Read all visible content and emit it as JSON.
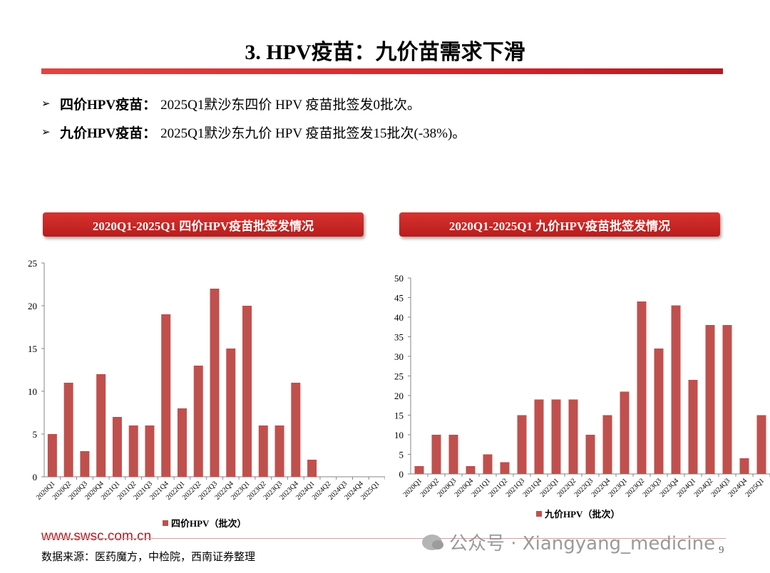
{
  "title": "3. HPV疫苗：九价苗需求下滑",
  "bullets": [
    {
      "arrow": "➢",
      "label": "四价HPV疫苗：",
      "text": "2025Q1默沙东四价 HPV 疫苗批签发0批次。"
    },
    {
      "arrow": "➢",
      "label": "九价HPV疫苗：",
      "text": " 2025Q1默沙东九价 HPV 疫苗批签发15批次(-38%)。"
    }
  ],
  "colors": {
    "bar": "#c0504d",
    "accent": "#d81f26"
  },
  "chart_data": [
    {
      "type": "bar",
      "title": "2020Q1-2025Q1 四价HPV疫苗批签发情况",
      "categories": [
        "2020Q1",
        "2020Q2",
        "2020Q3",
        "2020Q4",
        "2021Q1",
        "2021Q2",
        "2021Q3",
        "2021Q4",
        "2022Q1",
        "2022Q2",
        "2022Q3",
        "2022Q4",
        "2023Q1",
        "2023Q2",
        "2023Q3",
        "2023Q4",
        "2024Q1",
        "2024Q2",
        "2024Q3",
        "2024Q4",
        "2025Q1"
      ],
      "series": [
        {
          "name": "四价HPV（批次）",
          "values": [
            5,
            11,
            3,
            12,
            7,
            6,
            6,
            19,
            8,
            13,
            22,
            15,
            20,
            6,
            6,
            11,
            2,
            0,
            0,
            0,
            0
          ]
        }
      ],
      "ylim": [
        0,
        25
      ],
      "yticks": [
        "0",
        "5",
        "10",
        "15",
        "20",
        "25"
      ],
      "legend": "bottom"
    },
    {
      "type": "bar",
      "title": "2020Q1-2025Q1 九价HPV疫苗批签发情况",
      "categories": [
        "2020Q1",
        "2020Q2",
        "2020Q3",
        "2020Q4",
        "2021Q1",
        "2021Q2",
        "2021Q3",
        "2021Q4",
        "2022Q1",
        "2022Q2",
        "2022Q3",
        "2022Q4",
        "2023Q1",
        "2023Q2",
        "2023Q3",
        "2023Q4",
        "2024Q1",
        "2024Q2",
        "2024Q3",
        "2024Q4",
        "2025Q1"
      ],
      "series": [
        {
          "name": "九价HPV（批次）",
          "values": [
            2,
            10,
            10,
            2,
            5,
            3,
            15,
            19,
            19,
            19,
            10,
            15,
            21,
            44,
            32,
            43,
            24,
            38,
            38,
            4,
            15
          ]
        }
      ],
      "ylim": [
        0,
        50
      ],
      "yticks": [
        "0",
        "5",
        "10",
        "15",
        "20",
        "25",
        "30",
        "35",
        "40",
        "45",
        "50"
      ],
      "legend": "bottom"
    }
  ],
  "footer": {
    "url": "www.swsc.com.cn",
    "source": "数据来源：医药魔方，中检院，西南证券整理",
    "watermark": "公众号 · Xiangyang_medicine",
    "page": "9"
  }
}
